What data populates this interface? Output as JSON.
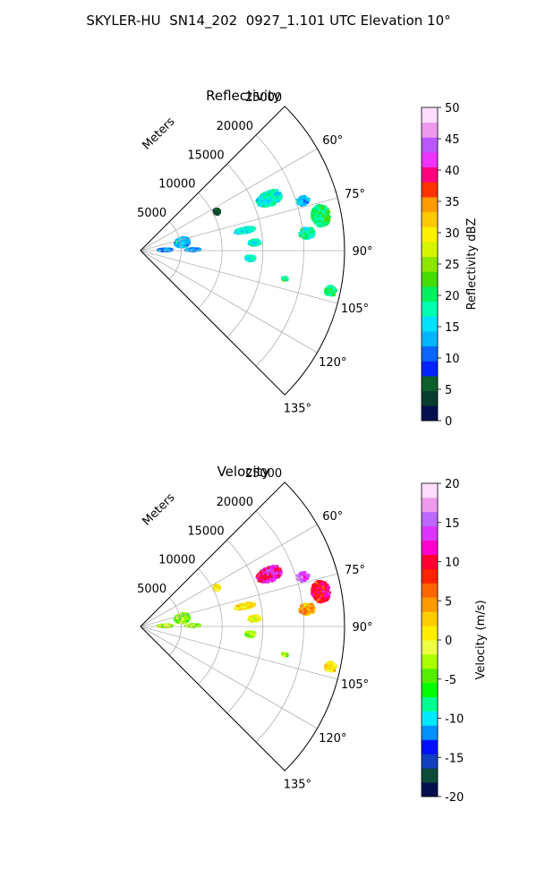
{
  "figure": {
    "title": "SKYLER-HU  SN14_202  0927_1.101 UTC Elevation 10°"
  },
  "chart_data": [
    {
      "type": "heatmap",
      "subtype": "polar-sector",
      "title": "Reflectivity",
      "radial_label": "Meters",
      "r_ticks": [
        5000,
        10000,
        15000,
        20000,
        25000
      ],
      "r_tick_labels": [
        "5000",
        "10000",
        "15000",
        "20000",
        "25000"
      ],
      "r_max": 25000,
      "theta_range_deg": [
        45,
        135
      ],
      "theta_ticks": [
        60,
        75,
        90,
        105,
        120,
        135
      ],
      "theta_tick_labels": [
        "60°",
        "75°",
        "90°",
        "105°",
        "120°",
        "135°"
      ],
      "grid": true,
      "colorbar": {
        "label": "Reflectivity dBZ",
        "range": [
          0,
          50
        ],
        "ticks": [
          0,
          5,
          10,
          15,
          20,
          25,
          30,
          35,
          40,
          45,
          50
        ],
        "tick_labels": [
          "0",
          "5",
          "10",
          "15",
          "20",
          "25",
          "30",
          "35",
          "40",
          "45",
          "50"
        ],
        "colormap": "NWSRef-like"
      },
      "echoes": [
        {
          "theta": 79,
          "r": 5200,
          "dr": 1800,
          "dtheta": 13,
          "value": 14
        },
        {
          "theta": 88.5,
          "r": 3000,
          "dr": 1700,
          "dtheta": 6,
          "value": 12
        },
        {
          "theta": 63,
          "r": 10500,
          "dr": 700,
          "dtheta": 4,
          "value": 5
        },
        {
          "theta": 68,
          "r": 17000,
          "dr": 3200,
          "dtheta": 6,
          "value": 17
        },
        {
          "theta": 73,
          "r": 20800,
          "dr": 1500,
          "dtheta": 3,
          "value": 14
        },
        {
          "theta": 79,
          "r": 13000,
          "dr": 2500,
          "dtheta": 3,
          "value": 16
        },
        {
          "theta": 79,
          "r": 22500,
          "dr": 2200,
          "dtheta": 7,
          "value": 20
        },
        {
          "theta": 84,
          "r": 20500,
          "dr": 1800,
          "dtheta": 4,
          "value": 18
        },
        {
          "theta": 86,
          "r": 14000,
          "dr": 1500,
          "dtheta": 3,
          "value": 17
        },
        {
          "theta": 89,
          "r": 6400,
          "dr": 1800,
          "dtheta": 3,
          "value": 12
        },
        {
          "theta": 94,
          "r": 13500,
          "dr": 1200,
          "dtheta": 3,
          "value": 17
        },
        {
          "theta": 102,
          "r": 23800,
          "dr": 1300,
          "dtheta": 3,
          "value": 20
        },
        {
          "theta": 101,
          "r": 18000,
          "dr": 700,
          "dtheta": 1.5,
          "value": 19
        }
      ]
    },
    {
      "type": "heatmap",
      "subtype": "polar-sector",
      "title": "Velocity",
      "radial_label": "Meters",
      "r_ticks": [
        5000,
        10000,
        15000,
        20000,
        25000
      ],
      "r_tick_labels": [
        "5000",
        "10000",
        "15000",
        "20000",
        "25000"
      ],
      "r_max": 25000,
      "theta_range_deg": [
        45,
        135
      ],
      "theta_ticks": [
        60,
        75,
        90,
        105,
        120,
        135
      ],
      "theta_tick_labels": [
        "60°",
        "75°",
        "90°",
        "105°",
        "120°",
        "135°"
      ],
      "grid": true,
      "colorbar": {
        "label": "Velocity (m/s)",
        "range": [
          -20,
          20
        ],
        "ticks": [
          -20,
          -15,
          -10,
          -5,
          0,
          5,
          10,
          15,
          20
        ],
        "tick_labels": [
          "-20",
          "-15",
          "-10",
          "-5",
          "0",
          "5",
          "10",
          "15",
          "20"
        ],
        "colormap": "NWSVel-like"
      },
      "echoes": [
        {
          "theta": 79,
          "r": 5200,
          "dr": 1800,
          "dtheta": 13,
          "value": -3
        },
        {
          "theta": 88.5,
          "r": 3000,
          "dr": 1700,
          "dtheta": 6,
          "value": -2
        },
        {
          "theta": 63,
          "r": 10500,
          "dr": 700,
          "dtheta": 4,
          "value": 1
        },
        {
          "theta": 68,
          "r": 17000,
          "dr": 3200,
          "dtheta": 6,
          "value": 12
        },
        {
          "theta": 73,
          "r": 20800,
          "dr": 1500,
          "dtheta": 3,
          "value": 15
        },
        {
          "theta": 79,
          "r": 13000,
          "dr": 2500,
          "dtheta": 3,
          "value": 1
        },
        {
          "theta": 79,
          "r": 22500,
          "dr": 2200,
          "dtheta": 7,
          "value": 10
        },
        {
          "theta": 84,
          "r": 20500,
          "dr": 1800,
          "dtheta": 4,
          "value": 4
        },
        {
          "theta": 86,
          "r": 14000,
          "dr": 1500,
          "dtheta": 3,
          "value": 0
        },
        {
          "theta": 89,
          "r": 6400,
          "dr": 1800,
          "dtheta": 3,
          "value": -3
        },
        {
          "theta": 94,
          "r": 13500,
          "dr": 1200,
          "dtheta": 3,
          "value": -3
        },
        {
          "theta": 102,
          "r": 23800,
          "dr": 1300,
          "dtheta": 3,
          "value": 2
        },
        {
          "theta": 101,
          "r": 18000,
          "dr": 700,
          "dtheta": 1.5,
          "value": -3
        }
      ]
    }
  ]
}
